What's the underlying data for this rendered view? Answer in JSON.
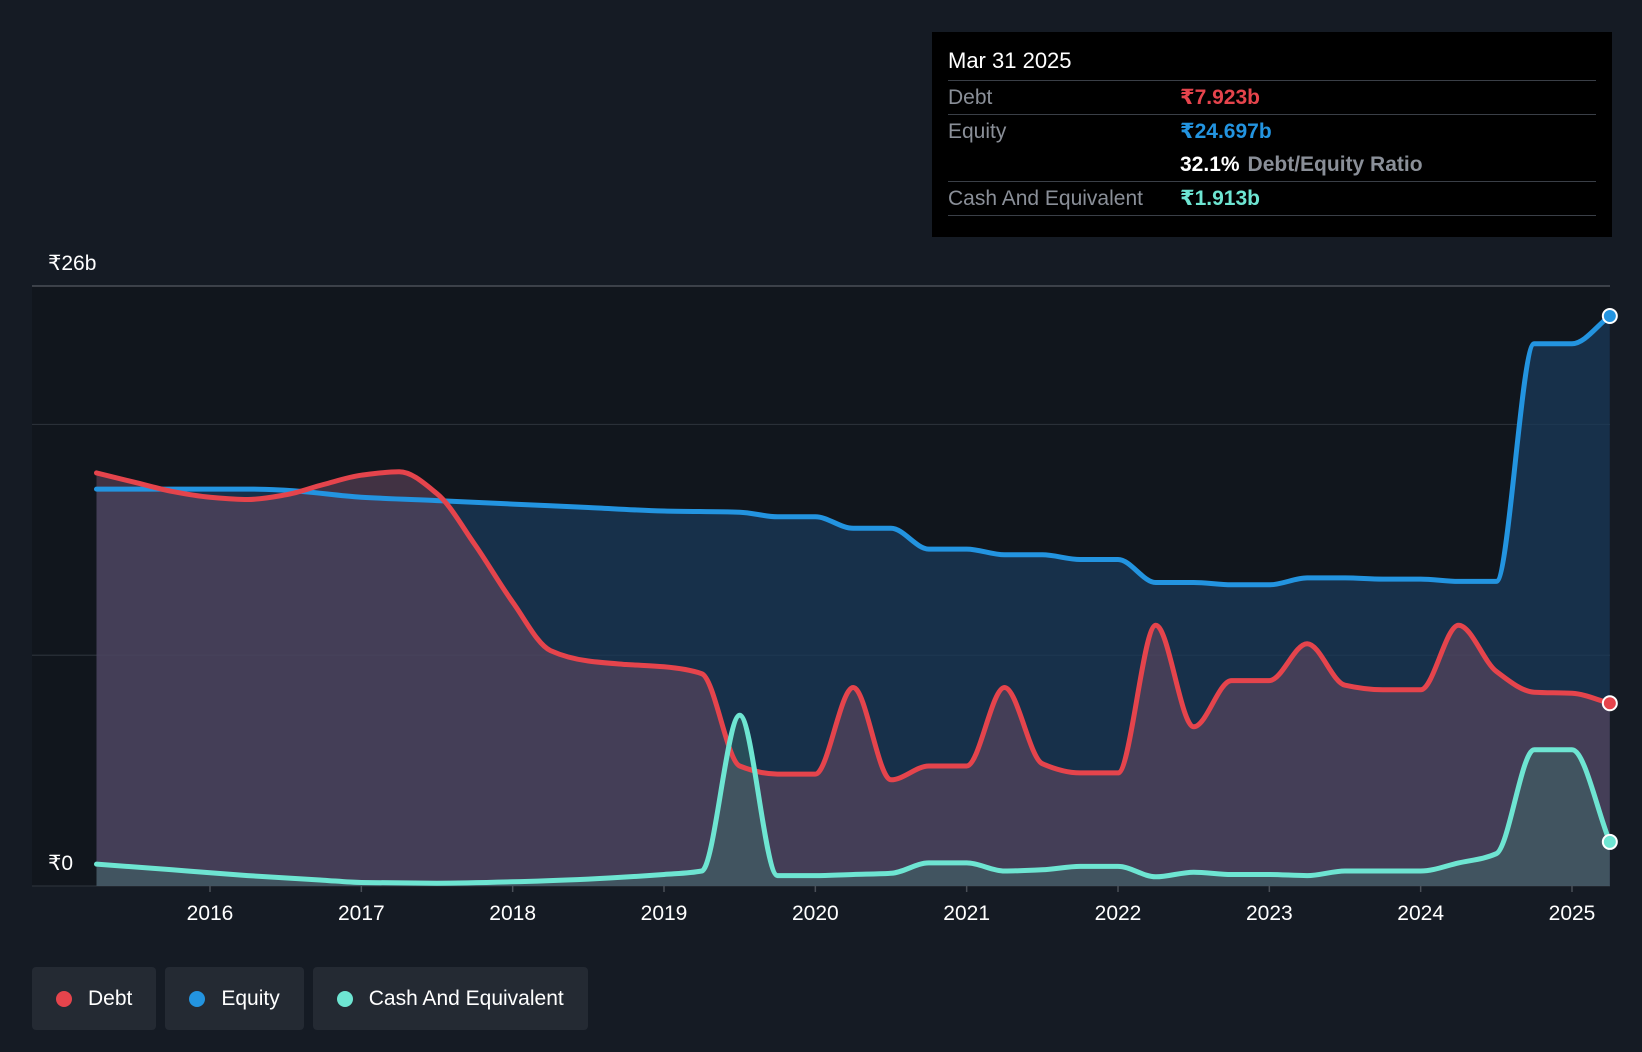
{
  "tooltip": {
    "date": "Mar 31 2025",
    "rows": [
      {
        "label": "Debt",
        "value": "₹7.923b"
      },
      {
        "label": "Equity",
        "value": "₹24.697b"
      },
      {
        "ratio_value": "32.1%",
        "ratio_label": "Debt/Equity Ratio"
      },
      {
        "label": "Cash And Equivalent",
        "value": "₹1.913b"
      }
    ]
  },
  "legend": [
    {
      "label": "Debt",
      "color": "#e5444c"
    },
    {
      "label": "Equity",
      "color": "#2394e0"
    },
    {
      "label": "Cash And Equivalent",
      "color": "#6ee5d2"
    }
  ],
  "chart_data": {
    "type": "area",
    "y_axis_labels": [
      "₹26b",
      "₹0"
    ],
    "ylim": [
      0,
      26
    ],
    "x_ticks": [
      "2016",
      "2017",
      "2018",
      "2019",
      "2020",
      "2021",
      "2022",
      "2023",
      "2024",
      "2025"
    ],
    "grid": true,
    "legend_position": "bottom-left",
    "series": [
      {
        "name": "Debt",
        "color": "#e5444c",
        "points": [
          [
            2015.25,
            17.9
          ],
          [
            2015.5,
            17.5
          ],
          [
            2015.75,
            17.1
          ],
          [
            2016.0,
            16.85
          ],
          [
            2016.25,
            16.75
          ],
          [
            2016.5,
            16.95
          ],
          [
            2016.75,
            17.4
          ],
          [
            2017.0,
            17.8
          ],
          [
            2017.25,
            17.95
          ],
          [
            2017.5,
            17.0
          ],
          [
            2017.75,
            14.8
          ],
          [
            2018.0,
            12.3
          ],
          [
            2018.25,
            10.2
          ],
          [
            2018.5,
            9.75
          ],
          [
            2018.75,
            9.6
          ],
          [
            2019.0,
            9.5
          ],
          [
            2019.25,
            9.2
          ],
          [
            2019.5,
            5.2
          ],
          [
            2019.75,
            4.85
          ],
          [
            2020.0,
            4.85
          ],
          [
            2020.25,
            8.6
          ],
          [
            2020.5,
            4.6
          ],
          [
            2020.75,
            5.2
          ],
          [
            2021.0,
            5.2
          ],
          [
            2021.25,
            8.6
          ],
          [
            2021.5,
            5.3
          ],
          [
            2021.75,
            4.9
          ],
          [
            2022.0,
            4.9
          ],
          [
            2022.25,
            11.3
          ],
          [
            2022.5,
            6.9
          ],
          [
            2022.75,
            8.9
          ],
          [
            2023.0,
            8.9
          ],
          [
            2023.25,
            10.5
          ],
          [
            2023.5,
            8.7
          ],
          [
            2023.75,
            8.5
          ],
          [
            2024.0,
            8.5
          ],
          [
            2024.25,
            11.3
          ],
          [
            2024.5,
            9.3
          ],
          [
            2024.75,
            8.4
          ],
          [
            2025.0,
            8.35
          ],
          [
            2025.25,
            7.92
          ]
        ]
      },
      {
        "name": "Equity",
        "color": "#2394e0",
        "points": [
          [
            2015.25,
            17.2
          ],
          [
            2015.75,
            17.2
          ],
          [
            2016.25,
            17.2
          ],
          [
            2016.5,
            17.15
          ],
          [
            2017.0,
            16.85
          ],
          [
            2017.5,
            16.7
          ],
          [
            2018.0,
            16.55
          ],
          [
            2018.5,
            16.4
          ],
          [
            2019.0,
            16.25
          ],
          [
            2019.5,
            16.2
          ],
          [
            2019.75,
            16.0
          ],
          [
            2020.0,
            16.0
          ],
          [
            2020.25,
            15.5
          ],
          [
            2020.5,
            15.5
          ],
          [
            2020.75,
            14.6
          ],
          [
            2021.0,
            14.6
          ],
          [
            2021.25,
            14.35
          ],
          [
            2021.5,
            14.35
          ],
          [
            2021.75,
            14.15
          ],
          [
            2022.0,
            14.15
          ],
          [
            2022.25,
            13.15
          ],
          [
            2022.5,
            13.15
          ],
          [
            2022.75,
            13.05
          ],
          [
            2023.0,
            13.05
          ],
          [
            2023.25,
            13.35
          ],
          [
            2023.5,
            13.35
          ],
          [
            2023.75,
            13.3
          ],
          [
            2024.0,
            13.3
          ],
          [
            2024.25,
            13.2
          ],
          [
            2024.5,
            13.2
          ],
          [
            2024.75,
            23.5
          ],
          [
            2025.0,
            23.5
          ],
          [
            2025.25,
            24.7
          ]
        ]
      },
      {
        "name": "Cash And Equivalent",
        "color": "#6ee5d2",
        "points": [
          [
            2015.25,
            0.95
          ],
          [
            2015.75,
            0.7
          ],
          [
            2016.25,
            0.45
          ],
          [
            2016.75,
            0.25
          ],
          [
            2017.0,
            0.15
          ],
          [
            2017.5,
            0.12
          ],
          [
            2018.0,
            0.18
          ],
          [
            2018.5,
            0.3
          ],
          [
            2019.0,
            0.5
          ],
          [
            2019.25,
            0.65
          ],
          [
            2019.5,
            7.4
          ],
          [
            2019.75,
            0.45
          ],
          [
            2020.0,
            0.45
          ],
          [
            2020.25,
            0.5
          ],
          [
            2020.5,
            0.55
          ],
          [
            2020.75,
            1.0
          ],
          [
            2021.0,
            1.0
          ],
          [
            2021.25,
            0.65
          ],
          [
            2021.5,
            0.7
          ],
          [
            2021.75,
            0.85
          ],
          [
            2022.0,
            0.85
          ],
          [
            2022.25,
            0.4
          ],
          [
            2022.5,
            0.6
          ],
          [
            2022.75,
            0.5
          ],
          [
            2023.0,
            0.5
          ],
          [
            2023.25,
            0.45
          ],
          [
            2023.5,
            0.65
          ],
          [
            2023.75,
            0.65
          ],
          [
            2024.0,
            0.65
          ],
          [
            2024.25,
            1.0
          ],
          [
            2024.5,
            1.4
          ],
          [
            2024.75,
            5.9
          ],
          [
            2025.0,
            5.9
          ],
          [
            2025.25,
            1.91
          ]
        ]
      }
    ]
  }
}
